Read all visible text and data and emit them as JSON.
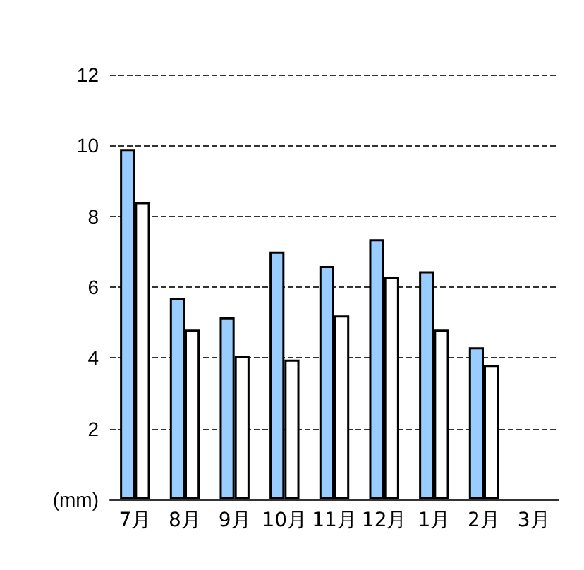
{
  "chart_data": {
    "type": "bar",
    "categories": [
      "7月",
      "8月",
      "9月",
      "10月",
      "11月",
      "12月",
      "1月",
      "2月",
      "3月"
    ],
    "series": [
      {
        "color": "#99ccff",
        "values": [
          9.9,
          5.7,
          5.15,
          7.0,
          6.6,
          7.35,
          6.45,
          4.3,
          null
        ]
      },
      {
        "color": "#ffffff",
        "values": [
          8.4,
          4.8,
          4.05,
          3.95,
          5.2,
          6.3,
          4.8,
          3.8,
          null
        ]
      }
    ],
    "ylim": [
      0,
      12
    ],
    "yticks": [
      {
        "value": 0,
        "label": "(mm)"
      },
      2,
      4,
      6,
      8,
      10,
      12
    ],
    "grid": "y",
    "line_style": "dashed"
  }
}
